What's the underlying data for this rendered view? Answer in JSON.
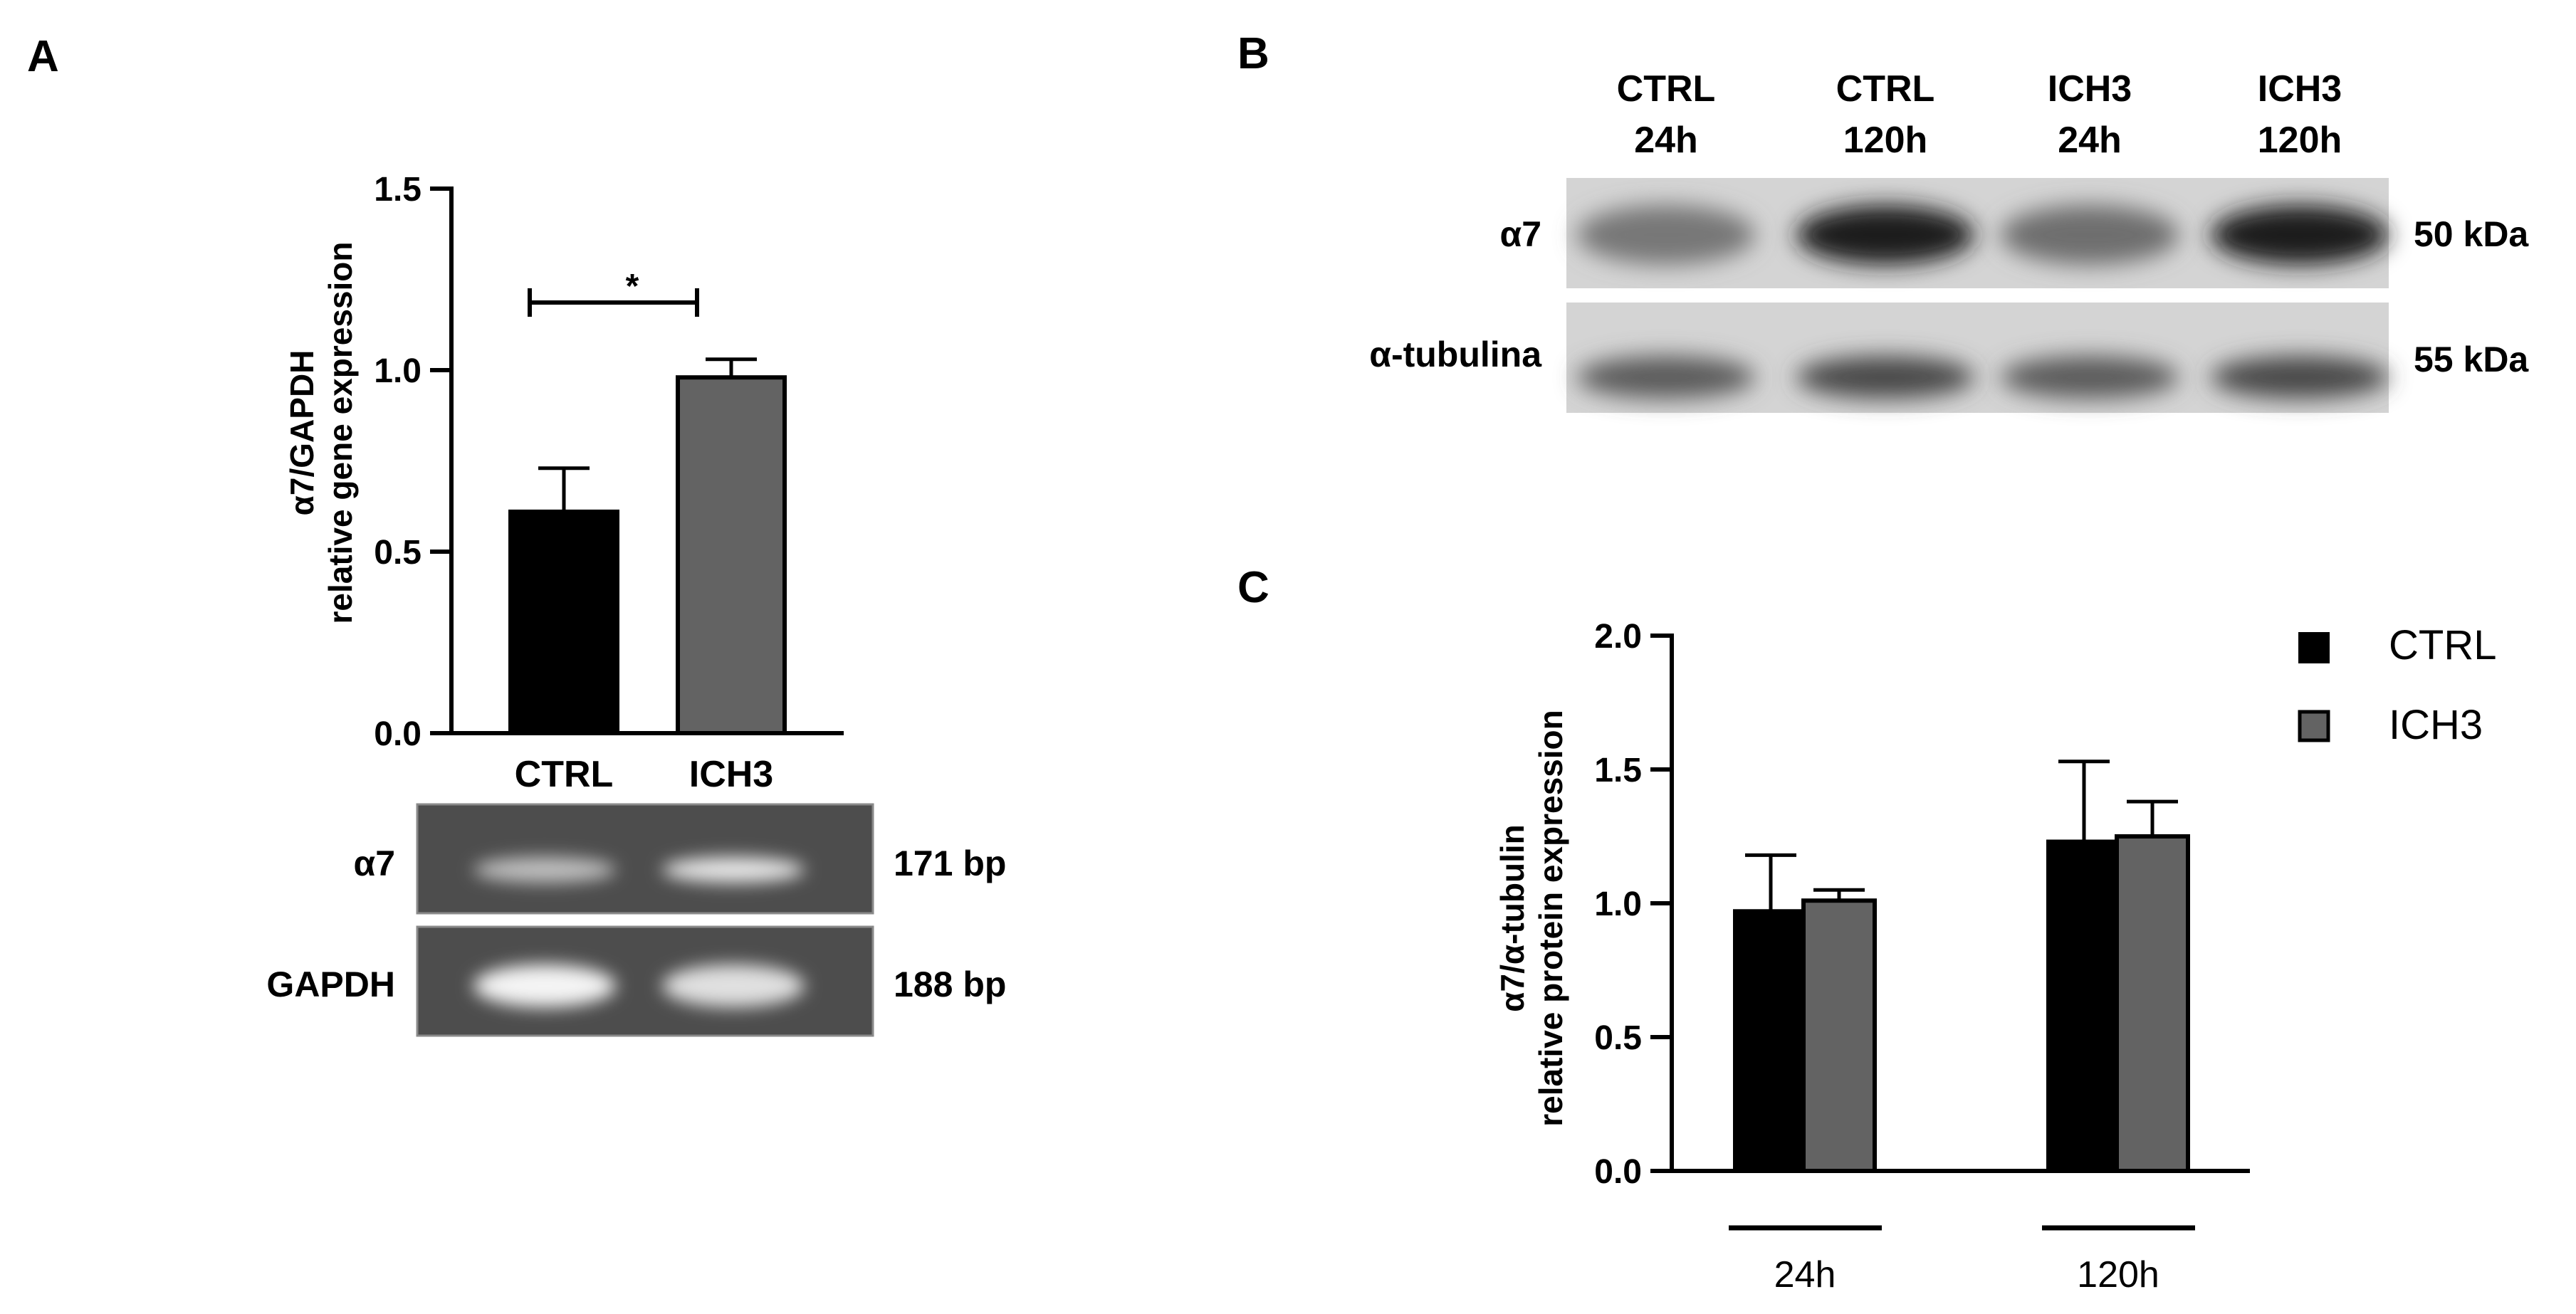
{
  "panels": {
    "a": {
      "letter": "A"
    },
    "b": {
      "letter": "B"
    },
    "c": {
      "letter": "C"
    }
  },
  "panel_a": {
    "ylabel_line1": "α7/GAPDH",
    "ylabel_line2": "relative gene expression",
    "significance": "*",
    "categories": [
      "CTRL",
      "ICH3"
    ],
    "gel": {
      "rows": [
        {
          "label": "α7",
          "size": "171 bp",
          "band_intensity": [
            0.55,
            0.85
          ]
        },
        {
          "label": "GAPDH",
          "size": "188 bp",
          "band_intensity": [
            0.95,
            0.8
          ]
        }
      ]
    }
  },
  "panel_b": {
    "lanes": [
      {
        "line1": "CTRL",
        "line2": "24h"
      },
      {
        "line1": "CTRL",
        "line2": "120h"
      },
      {
        "line1": "ICH3",
        "line2": "24h"
      },
      {
        "line1": "ICH3",
        "line2": "120h"
      }
    ],
    "rows": [
      {
        "label": "α7",
        "size": "50 kDa",
        "band_intensity": [
          0.45,
          0.95,
          0.5,
          0.95
        ]
      },
      {
        "label": "α-tubulina",
        "size": "55 kDa",
        "band_intensity": [
          0.6,
          0.7,
          0.6,
          0.7
        ]
      }
    ]
  },
  "panel_c": {
    "ylabel_line1": "α7/α-tubulin",
    "ylabel_line2": "relative protein expression",
    "group_labels": [
      "24h",
      "120h"
    ],
    "legend": [
      {
        "name": "CTRL",
        "color": "#000000"
      },
      {
        "name": "ICH3",
        "color": "#636363"
      }
    ]
  },
  "chart_data": [
    {
      "type": "bar",
      "categories": [
        "CTRL",
        "ICH3"
      ],
      "values": [
        0.61,
        0.98
      ],
      "errors": [
        0.12,
        0.05
      ],
      "colors": [
        "#000000",
        "#636363"
      ],
      "title": "",
      "xlabel": "",
      "ylabel": "α7/GAPDH relative gene expression",
      "ylim": [
        0,
        1.5
      ],
      "yticks": [
        0.0,
        0.5,
        1.0,
        1.5
      ],
      "ytick_labels": [
        "0.0",
        "0.5",
        "1.0",
        "1.5"
      ],
      "significance": {
        "between": [
          "CTRL",
          "ICH3"
        ],
        "label": "*"
      },
      "grid": false
    },
    {
      "type": "bar",
      "categories": [
        "24h",
        "120h"
      ],
      "series": [
        {
          "name": "CTRL",
          "values": [
            0.97,
            1.23
          ],
          "errors": [
            0.21,
            0.3
          ],
          "color": "#000000"
        },
        {
          "name": "ICH3",
          "values": [
            1.01,
            1.25
          ],
          "errors": [
            0.04,
            0.13
          ],
          "color": "#636363"
        }
      ],
      "title": "",
      "xlabel": "",
      "ylabel": "α7/α-tubulin relative protein expression",
      "ylim": [
        0,
        2.0
      ],
      "yticks": [
        0.0,
        0.5,
        1.0,
        1.5,
        2.0
      ],
      "ytick_labels": [
        "0.0",
        "0.5",
        "1.0",
        "1.5",
        "2.0"
      ],
      "legend_position": "top-right",
      "grid": false
    }
  ]
}
